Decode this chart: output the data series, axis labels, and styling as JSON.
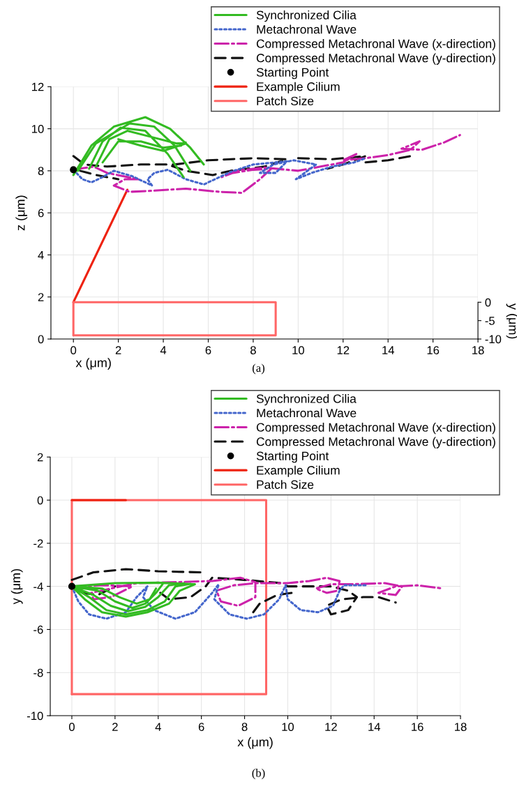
{
  "chart_data": [
    {
      "type": "line",
      "xlabel": "x (μm)",
      "ylabel": "z (μm)",
      "y2label": "y (μm)",
      "annotations": [
        "(a)"
      ],
      "xlim": [
        -1,
        18
      ],
      "xticks": [
        0,
        2,
        4,
        6,
        8,
        10,
        12,
        14,
        16,
        18
      ],
      "ylim": [
        0,
        12
      ],
      "yticks": [
        0,
        2,
        4,
        6,
        8,
        10,
        12
      ],
      "y2lim": [
        -10,
        58.6
      ],
      "y2ticks": [
        -10,
        -5,
        0
      ],
      "grid": true,
      "legend": "top right",
      "series": [
        {
          "name": "Synchronized Cilia",
          "color": "#33bb22",
          "line_style": "solid",
          "x": [
            0,
            0.8,
            1.8,
            3.2,
            4.3,
            5.2,
            5.8,
            null,
            0.2,
            1.0,
            2.5,
            3.6,
            4.5,
            5.2,
            null,
            0.7,
            1.3,
            2.1,
            3.2,
            4.2,
            4.9,
            null,
            1.0,
            1.6,
            2.4,
            3.5,
            4.6,
            5.0,
            null,
            1.3,
            2.0,
            3.0,
            4.0,
            4.8,
            null,
            2.0,
            3.0,
            4.0,
            5.0
          ],
          "values": [
            7.8,
            9.2,
            10.1,
            10.55,
            10.0,
            9.1,
            8.3,
            null,
            8.0,
            9.3,
            10.25,
            10.1,
            9.2,
            8.0,
            null,
            8.1,
            9.4,
            10.05,
            9.9,
            8.8,
            7.7,
            null,
            8.2,
            9.5,
            9.9,
            9.6,
            9.3,
            9.35,
            null,
            8.4,
            9.4,
            9.4,
            9.1,
            9.2,
            null,
            9.5,
            9.2,
            8.95,
            9.3
          ]
        },
        {
          "name": "Metachronal Wave",
          "color": "#4466cc",
          "line_style": "dotted",
          "x": [
            0,
            0.4,
            0.8,
            1.3,
            1.8,
            2.6,
            3.5,
            3.3,
            3.6,
            4.2,
            5.0,
            5.8,
            6.3,
            7.0,
            8.0,
            9.5,
            9.0,
            8.3,
            8.9,
            9.8,
            10.8,
            9.9,
            10.6,
            11.5,
            12.5,
            13.0
          ],
          "values": [
            8.05,
            7.6,
            7.45,
            7.7,
            8.0,
            7.75,
            7.3,
            7.6,
            7.9,
            8.05,
            7.6,
            7.35,
            7.6,
            7.95,
            8.3,
            8.45,
            7.9,
            7.9,
            8.3,
            8.5,
            8.3,
            7.6,
            7.9,
            8.2,
            8.4,
            8.6
          ]
        },
        {
          "name": "Compressed Metachronal Wave (x-direction)",
          "color": "#cc22aa",
          "line_style": "dashdot",
          "x": [
            0,
            0.9,
            1.5,
            2.9,
            2.3,
            1.8,
            2.5,
            3.5,
            5.0,
            6.5,
            7.5,
            8.3,
            8.8,
            8.0,
            7.1,
            6.6,
            7.2,
            8.5,
            10.0,
            11.0,
            12.0,
            12.6,
            12.0,
            13.0,
            14.0,
            15.0,
            15.4,
            14.6,
            15.5,
            16.5,
            17.2
          ],
          "values": [
            8.05,
            8.2,
            7.9,
            7.6,
            7.6,
            7.3,
            7.0,
            7.05,
            7.15,
            7.0,
            6.95,
            7.6,
            8.1,
            8.05,
            7.9,
            7.7,
            8.0,
            8.15,
            8.0,
            8.2,
            8.4,
            8.8,
            8.5,
            8.6,
            8.75,
            9.0,
            9.4,
            9.05,
            9.0,
            9.35,
            9.7
          ]
        },
        {
          "name": "Compressed Metachronal Wave (y-direction)",
          "color": "#111111",
          "line_style": "dashed",
          "x": [
            0,
            0.5,
            1.5,
            3.0,
            4.5,
            6.0,
            8.0,
            9.5,
            8.5,
            7.0,
            6.2,
            5.0,
            4.2,
            null,
            10.0,
            11.5,
            12.5,
            13.0,
            12.0,
            11.3,
            null,
            0.3,
            1.0,
            2.0,
            null,
            13.0,
            14.0,
            15.0
          ],
          "values": [
            8.7,
            8.3,
            8.2,
            8.3,
            8.3,
            8.5,
            8.6,
            8.55,
            8.2,
            8.0,
            7.8,
            8.0,
            8.3,
            null,
            8.6,
            8.55,
            8.65,
            8.7,
            8.3,
            8.1,
            null,
            8.0,
            7.8,
            7.6,
            null,
            8.4,
            8.5,
            8.7
          ]
        },
        {
          "name": "Starting Point",
          "type": "scatter",
          "color": "#000000",
          "marker": "circle",
          "x": [
            0
          ],
          "values": [
            8.05
          ]
        },
        {
          "name": "Example Cilium",
          "color": "#ee2211",
          "line_style": "solid",
          "x": [
            0,
            2.4
          ],
          "values": [
            1.75,
            7.1
          ]
        },
        {
          "name": "Patch Size",
          "color": "#ff6666",
          "line_style": "solid",
          "axis": "y2",
          "x": [
            0,
            9,
            9,
            0
          ],
          "values": [
            0,
            0,
            -9,
            -9
          ]
        },
        {
          "color": "#ff6666",
          "line_style": "solid",
          "axis": "y2",
          "x": [
            0,
            0
          ],
          "values": [
            -9,
            0
          ]
        }
      ]
    },
    {
      "type": "line",
      "xlabel": "x (μm)",
      "ylabel": "y (μm)",
      "annotations": [
        "(b)"
      ],
      "xlim": [
        -1,
        18
      ],
      "xticks": [
        0,
        2,
        4,
        6,
        8,
        10,
        12,
        14,
        16,
        18
      ],
      "ylim": [
        -10,
        2
      ],
      "yticks": [
        -10,
        -8,
        -6,
        -4,
        -2,
        0,
        2
      ],
      "grid": true,
      "legend": "top right",
      "series": [
        {
          "name": "Synchronized Cilia",
          "color": "#33bb22",
          "line_style": "solid",
          "x": [
            0,
            0.6,
            1.4,
            2.5,
            3.5,
            4.5,
            5.0,
            5.7,
            null,
            0,
            0.8,
            1.6,
            2.5,
            3.5,
            4.3,
            4.8,
            5.5,
            null,
            0,
            1.0,
            1.8,
            2.6,
            3.4,
            4.0,
            4.5,
            5.2,
            null,
            0,
            1.2,
            2.0,
            2.8,
            3.4,
            3.9,
            4.2,
            null,
            0,
            1.4,
            2.2,
            3.0,
            3.6,
            3.9,
            null,
            0,
            2.0,
            4.0,
            5.7
          ],
          "values": [
            -4,
            -4.6,
            -5.2,
            -5.4,
            -5.2,
            -4.8,
            -4.2,
            -3.9,
            null,
            -4,
            -4.5,
            -5.1,
            -5.3,
            -5.1,
            -4.7,
            -4.0,
            -3.88,
            null,
            -4,
            -4.4,
            -4.9,
            -5.15,
            -4.95,
            -4.5,
            -3.95,
            -3.86,
            null,
            -4,
            -4.2,
            -4.7,
            -5.0,
            -4.8,
            -4.3,
            -3.9,
            null,
            -4,
            -4.1,
            -4.5,
            -4.8,
            -4.6,
            -4.1,
            null,
            -4,
            -3.85,
            -3.83,
            -3.9
          ]
        },
        {
          "name": "Metachronal Wave",
          "color": "#4466cc",
          "line_style": "dotted",
          "x": [
            0,
            0.3,
            0.8,
            1.6,
            2.5,
            3.0,
            3.5,
            3.3,
            3.8,
            4.8,
            5.7,
            6.5,
            6.8,
            6.6,
            7.3,
            8.1,
            8.9,
            9.6,
            9.9,
            10.0,
            10.6,
            11.4,
            12.1,
            12.4,
            12.6,
            13.7
          ],
          "values": [
            -4,
            -4.7,
            -5.3,
            -5.5,
            -5.2,
            -4.5,
            -4.0,
            -4.5,
            -5.1,
            -5.5,
            -5.2,
            -4.3,
            -3.9,
            -4.6,
            -5.3,
            -5.5,
            -5.3,
            -4.6,
            -3.95,
            -4.6,
            -5.1,
            -5.2,
            -4.9,
            -4.2,
            -3.95,
            -3.95
          ]
        },
        {
          "name": "Compressed Metachronal Wave (x-direction)",
          "color": "#cc22aa",
          "line_style": "dashdot",
          "x": [
            0,
            1.5,
            2.8,
            1.8,
            1.0,
            0.9,
            1.8,
            3.0,
            5.0,
            6.5,
            7.8,
            8.5,
            8.5,
            7.7,
            6.9,
            6.7,
            7.5,
            8.5,
            10.0,
            11.0,
            11.8,
            12.4,
            12.3,
            11.8,
            11.3,
            12.0,
            13.0,
            14.5,
            15.3,
            15.0,
            14.2,
            15.0,
            16.0,
            17.2
          ],
          "values": [
            -4,
            -3.95,
            -4.0,
            -4.5,
            -4.6,
            -4.3,
            -4.1,
            -3.85,
            -3.8,
            -3.75,
            -3.6,
            -3.8,
            -4.5,
            -4.9,
            -4.7,
            -4.2,
            -3.95,
            -3.85,
            -3.85,
            -3.75,
            -3.6,
            -3.75,
            -4.2,
            -4.3,
            -4.1,
            -3.9,
            -3.9,
            -3.85,
            -4.0,
            -4.4,
            -4.3,
            -4.0,
            -3.95,
            -4.1
          ]
        },
        {
          "name": "Compressed Metachronal Wave (y-direction)",
          "color": "#111111",
          "line_style": "dashed",
          "x": [
            0,
            1.0,
            2.5,
            4.0,
            6.0,
            null,
            0.5,
            1.2,
            2.0,
            null,
            4.1,
            4.5,
            5.5,
            6.2,
            6.5,
            8.0,
            9.7,
            10.0,
            11.0,
            12.0,
            12.8,
            13.2,
            12.8,
            12.0,
            11.8,
            12.5,
            13.5,
            14.2,
            15.0,
            null,
            8.4,
            8.7,
            9.5,
            10.2
          ],
          "values": [
            -3.7,
            -3.35,
            -3.2,
            -3.3,
            -3.35,
            null,
            -4.3,
            -4.4,
            -4.0,
            null,
            -4.3,
            -4.6,
            -4.5,
            -4.0,
            -3.6,
            -3.7,
            -3.85,
            -4.0,
            -4.0,
            -4.0,
            -4.2,
            -4.5,
            -5.1,
            -5.3,
            -4.9,
            -4.6,
            -4.5,
            -4.5,
            -4.75,
            null,
            -5.2,
            -4.8,
            -4.4,
            -4.3
          ]
        },
        {
          "name": "Starting Point",
          "type": "scatter",
          "color": "#000000",
          "marker": "circle",
          "x": [
            0
          ],
          "values": [
            -4
          ]
        },
        {
          "name": "Example Cilium",
          "color": "#ee2211",
          "line_style": "solid",
          "x": [
            0,
            2.5
          ],
          "values": [
            0,
            0
          ]
        },
        {
          "name": "Patch Size",
          "color": "#ff6666",
          "line_style": "solid",
          "x": [
            0,
            9,
            9,
            0
          ],
          "values": [
            0,
            0,
            -9,
            -9
          ]
        },
        {
          "color": "#ff6666",
          "line_style": "solid",
          "x": [
            0,
            0
          ],
          "values": [
            -9,
            0
          ]
        }
      ]
    }
  ]
}
